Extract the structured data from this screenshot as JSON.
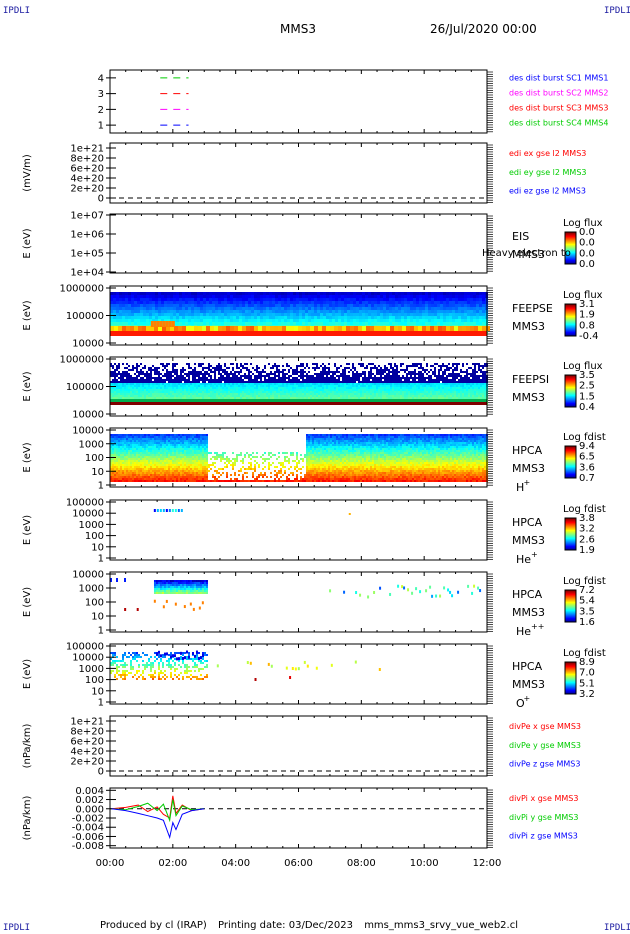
{
  "header": {
    "corner_left_top": "IPDLI",
    "corner_right_top": "IPDLI",
    "corner_left_bottom": "IPDLI",
    "corner_right_bottom": "IPDLI",
    "spacecraft": "MMS3",
    "date": "26/Jul/2020 00:00"
  },
  "footer": {
    "produced_by": "Produced by cl (IRAP)",
    "printing_date": "Printing date: 03/Dec/2023",
    "script": "mms_mms3_srvy_vue_web2.cl"
  },
  "colors": {
    "c1": "#0000ff",
    "c2": "#ff00ff",
    "c3": "#ff0000",
    "c4": "#00cc00"
  },
  "chart_data": [
    {
      "type": "line",
      "id": "burst",
      "ylim": [
        0.5,
        4.5
      ],
      "yticks": [
        "1",
        "2",
        "3",
        "4"
      ],
      "legend": [
        {
          "name": "des dist burst SC1 MMS1",
          "color": "#0000ff"
        },
        {
          "name": "des dist burst SC2 MMS2",
          "color": "#ff00ff"
        },
        {
          "name": "des dist burst SC3 MMS3",
          "color": "#ff0000"
        },
        {
          "name": "des dist burst SC4 MMS4",
          "color": "#00cc00"
        }
      ],
      "series": [
        {
          "color": "#00cc00",
          "y": 4,
          "x": [
            1.6,
            2.5
          ]
        },
        {
          "color": "#ff0000",
          "y": 3,
          "x": [
            1.6,
            2.5
          ]
        },
        {
          "color": "#ff00ff",
          "y": 2,
          "x": [
            1.6,
            2.5
          ]
        },
        {
          "color": "#0000ff",
          "y": 1,
          "x": [
            1.6,
            2.5
          ]
        }
      ]
    },
    {
      "type": "line",
      "id": "edi",
      "ylabel": "(mV/m)",
      "yticks": [
        "0",
        "2e+20",
        "4e+20",
        "6e+20",
        "8e+20",
        "1e+21"
      ],
      "legend": [
        {
          "name": "edi ex gse l2 MMS3",
          "color": "#ff0000"
        },
        {
          "name": "edi ey gse l2 MMS3",
          "color": "#00cc00"
        },
        {
          "name": "edi ez gse l2 MMS3",
          "color": "#0000ff"
        }
      ]
    },
    {
      "type": "heatmap",
      "id": "eis",
      "ylabel": "E (eV)",
      "yticks": [
        "1e+04",
        "1e+05",
        "1e+06",
        "1e+07"
      ],
      "label1": "EIS",
      "label2": "MMS3",
      "overlay": "Heavy electron to",
      "cbar_title": "Log flux",
      "cbar_ticks": [
        "0.0",
        "0.0",
        "0.0",
        "0.0"
      ]
    },
    {
      "type": "heatmap",
      "id": "feepse",
      "ylabel": "E (eV)",
      "yticks": [
        "10000",
        "100000",
        "1000000"
      ],
      "label1": "FEEPSE",
      "label2": "MMS3",
      "cbar_title": "Log flux",
      "cbar_ticks": [
        "3.1",
        "1.9",
        "0.8",
        "-0.4"
      ]
    },
    {
      "type": "heatmap",
      "id": "feepsi",
      "ylabel": "E (eV)",
      "yticks": [
        "10000",
        "100000",
        "1000000"
      ],
      "label1": "FEEPSI",
      "label2": "MMS3",
      "cbar_title": "Log flux",
      "cbar_ticks": [
        "3.5",
        "2.5",
        "1.5",
        "0.4"
      ]
    },
    {
      "type": "heatmap",
      "id": "hpca_h",
      "ylabel": "E (eV)",
      "yticks": [
        "1",
        "10",
        "100",
        "1000",
        "10000"
      ],
      "label1": "HPCA",
      "label2": "MMS3",
      "species": "H",
      "charge": "+",
      "cbar_title": "Log fdist",
      "cbar_ticks": [
        "9.4",
        "6.5",
        "3.6",
        "0.7"
      ]
    },
    {
      "type": "heatmap",
      "id": "hpca_he",
      "ylabel": "E (eV)",
      "yticks": [
        "1",
        "10",
        "100",
        "1000",
        "10000",
        "100000"
      ],
      "label1": "HPCA",
      "label2": "MMS3",
      "species": "He",
      "charge": "+",
      "cbar_title": "Log fdist",
      "cbar_ticks": [
        "3.8",
        "3.2",
        "2.6",
        "1.9"
      ]
    },
    {
      "type": "heatmap",
      "id": "hpca_he2",
      "ylabel": "E (eV)",
      "yticks": [
        "1",
        "10",
        "100",
        "1000",
        "10000"
      ],
      "label1": "HPCA",
      "label2": "MMS3",
      "species": "He",
      "charge": "++",
      "cbar_title": "Log fdist",
      "cbar_ticks": [
        "7.2",
        "5.4",
        "3.5",
        "1.6"
      ]
    },
    {
      "type": "heatmap",
      "id": "hpca_o",
      "ylabel": "E (eV)",
      "yticks": [
        "1",
        "10",
        "100",
        "1000",
        "10000",
        "100000"
      ],
      "label1": "HPCA",
      "label2": "MMS3",
      "species": "O",
      "charge": "+",
      "cbar_title": "Log fdist",
      "cbar_ticks": [
        "8.9",
        "7.0",
        "5.1",
        "3.2"
      ]
    },
    {
      "type": "line",
      "id": "divpe",
      "ylabel": "(nPa/km)",
      "yticks": [
        "0",
        "2e+20",
        "4e+20",
        "6e+20",
        "8e+20",
        "1e+21"
      ],
      "legend": [
        {
          "name": "divPe x gse MMS3",
          "color": "#ff0000"
        },
        {
          "name": "divPe y gse MMS3",
          "color": "#00cc00"
        },
        {
          "name": "divPe z gse MMS3",
          "color": "#0000ff"
        }
      ]
    },
    {
      "type": "line",
      "id": "divpi",
      "ylabel": "(nPa/km)",
      "ylim": [
        -0.0085,
        0.0045
      ],
      "yticks": [
        "-0.008",
        "-0.006",
        "-0.004",
        "-0.002",
        "0.000",
        "0.002",
        "0.004"
      ],
      "ytick_values": [
        -0.008,
        -0.006,
        -0.004,
        -0.002,
        0,
        0.002,
        0.004
      ],
      "legend": [
        {
          "name": "divPi x gse MMS3",
          "color": "#ff0000"
        },
        {
          "name": "divPi y gse MMS3",
          "color": "#00cc00"
        },
        {
          "name": "divPi z gse MMS3",
          "color": "#0000ff"
        }
      ],
      "series": [
        {
          "name": "divPi x gse MMS3",
          "color": "#ff0000",
          "x": [
            0.05,
            0.5,
            0.9,
            1.2,
            1.5,
            1.7,
            1.9,
            2.0,
            2.1,
            2.3,
            2.6,
            3.0
          ],
          "y": [
            0.0,
            0.0003,
            0.0008,
            -0.0006,
            0.0004,
            -0.0012,
            -0.002,
            0.0028,
            -0.001,
            0.0008,
            -0.0004,
            0.0
          ]
        },
        {
          "name": "divPi y gse MMS3",
          "color": "#00cc00",
          "x": [
            0.05,
            0.5,
            0.9,
            1.2,
            1.5,
            1.7,
            1.9,
            2.0,
            2.1,
            2.3,
            2.6,
            3.0
          ],
          "y": [
            0.0,
            -0.0002,
            0.0005,
            0.0012,
            -0.0004,
            0.001,
            -0.0025,
            0.002,
            -0.0015,
            0.0006,
            -0.0002,
            0.0
          ]
        },
        {
          "name": "divPi z gse MMS3",
          "color": "#0000ff",
          "x": [
            0.05,
            0.5,
            0.9,
            1.2,
            1.5,
            1.7,
            1.9,
            2.0,
            2.1,
            2.3,
            2.6,
            3.0
          ],
          "y": [
            0.0,
            -0.0004,
            -0.001,
            -0.0015,
            -0.002,
            -0.0025,
            -0.0062,
            -0.003,
            -0.0045,
            -0.0012,
            -0.0004,
            0.0
          ]
        }
      ]
    }
  ],
  "xaxis": {
    "range_hours": [
      0,
      12
    ],
    "ticks": [
      "00:00",
      "02:00",
      "04:00",
      "06:00",
      "08:00",
      "10:00",
      "12:00"
    ]
  }
}
